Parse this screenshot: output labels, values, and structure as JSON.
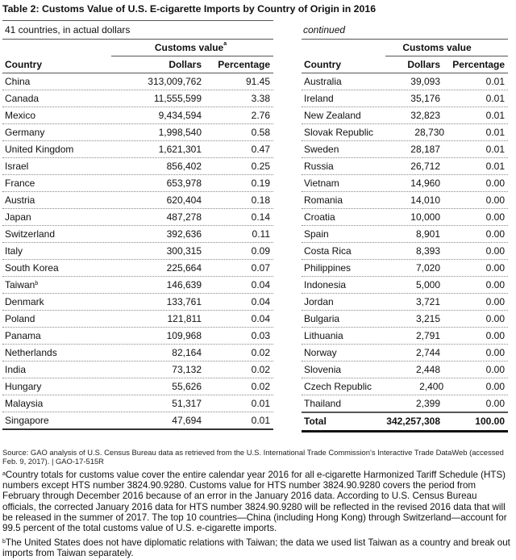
{
  "title": "Table 2: Customs Value of U.S. E-cigarette Imports by Country of Origin in 2016",
  "left_table": {
    "subtitle": "41 countries, in actual dollars",
    "group_header": "Customs value",
    "group_header_note": "a",
    "columns": [
      "Country",
      "Dollars",
      "Percentage"
    ],
    "rows": [
      {
        "country": "China",
        "note": "",
        "dollars": "313,009,762",
        "percentage": "91.45"
      },
      {
        "country": "Canada",
        "note": "",
        "dollars": "11,555,599",
        "percentage": "3.38"
      },
      {
        "country": "Mexico",
        "note": "",
        "dollars": "9,434,594",
        "percentage": "2.76"
      },
      {
        "country": "Germany",
        "note": "",
        "dollars": "1,998,540",
        "percentage": "0.58"
      },
      {
        "country": "United Kingdom",
        "note": "",
        "dollars": "1,621,301",
        "percentage": "0.47"
      },
      {
        "country": "Israel",
        "note": "",
        "dollars": "856,402",
        "percentage": "0.25"
      },
      {
        "country": "France",
        "note": "",
        "dollars": "653,978",
        "percentage": "0.19"
      },
      {
        "country": "Austria",
        "note": "",
        "dollars": "620,404",
        "percentage": "0.18"
      },
      {
        "country": "Japan",
        "note": "",
        "dollars": "487,278",
        "percentage": "0.14"
      },
      {
        "country": "Switzerland",
        "note": "",
        "dollars": "392,636",
        "percentage": "0.11"
      },
      {
        "country": "Italy",
        "note": "",
        "dollars": "300,315",
        "percentage": "0.09"
      },
      {
        "country": "South Korea",
        "note": "",
        "dollars": "225,664",
        "percentage": "0.07"
      },
      {
        "country": "Taiwan",
        "note": "b",
        "dollars": "146,639",
        "percentage": "0.04"
      },
      {
        "country": "Denmark",
        "note": "",
        "dollars": "133,761",
        "percentage": "0.04"
      },
      {
        "country": "Poland",
        "note": "",
        "dollars": "121,811",
        "percentage": "0.04"
      },
      {
        "country": "Panama",
        "note": "",
        "dollars": "109,968",
        "percentage": "0.03"
      },
      {
        "country": "Netherlands",
        "note": "",
        "dollars": "82,164",
        "percentage": "0.02"
      },
      {
        "country": "India",
        "note": "",
        "dollars": "73,132",
        "percentage": "0.02"
      },
      {
        "country": "Hungary",
        "note": "",
        "dollars": "55,626",
        "percentage": "0.02"
      },
      {
        "country": "Malaysia",
        "note": "",
        "dollars": "51,317",
        "percentage": "0.01"
      },
      {
        "country": "Singapore",
        "note": "",
        "dollars": "47,694",
        "percentage": "0.01"
      }
    ]
  },
  "right_table": {
    "continued_label": "continued",
    "group_header": "Customs value",
    "columns": [
      "Country",
      "Dollars",
      "Percentage"
    ],
    "rows": [
      {
        "country": "Australia",
        "dollars": "39,093",
        "percentage": "0.01"
      },
      {
        "country": "Ireland",
        "dollars": "35,176",
        "percentage": "0.01"
      },
      {
        "country": "New Zealand",
        "dollars": "32,823",
        "percentage": "0.01"
      },
      {
        "country": "Slovak Republic",
        "dollars": "28,730",
        "percentage": "0.01"
      },
      {
        "country": "Sweden",
        "dollars": "28,187",
        "percentage": "0.01"
      },
      {
        "country": "Russia",
        "dollars": "26,712",
        "percentage": "0.01"
      },
      {
        "country": "Vietnam",
        "dollars": "14,960",
        "percentage": "0.00"
      },
      {
        "country": "Romania",
        "dollars": "14,010",
        "percentage": "0.00"
      },
      {
        "country": "Croatia",
        "dollars": "10,000",
        "percentage": "0.00"
      },
      {
        "country": "Spain",
        "dollars": "8,901",
        "percentage": "0.00"
      },
      {
        "country": "Costa Rica",
        "dollars": "8,393",
        "percentage": "0.00"
      },
      {
        "country": "Philippines",
        "dollars": "7,020",
        "percentage": "0.00"
      },
      {
        "country": "Indonesia",
        "dollars": "5,000",
        "percentage": "0.00"
      },
      {
        "country": "Jordan",
        "dollars": "3,721",
        "percentage": "0.00"
      },
      {
        "country": "Bulgaria",
        "dollars": "3,215",
        "percentage": "0.00"
      },
      {
        "country": "Lithuania",
        "dollars": "2,791",
        "percentage": "0.00"
      },
      {
        "country": "Norway",
        "dollars": "2,744",
        "percentage": "0.00"
      },
      {
        "country": "Slovenia",
        "dollars": "2,448",
        "percentage": "0.00"
      },
      {
        "country": "Czech Republic",
        "dollars": "2,400",
        "percentage": "0.00"
      },
      {
        "country": "Thailand",
        "dollars": "2,399",
        "percentage": "0.00"
      }
    ],
    "total": {
      "label": "Total",
      "dollars": "342,257,308",
      "percentage": "100.00"
    }
  },
  "notes": {
    "source": "Source: GAO analysis of U.S. Census Bureau data as retrieved from the U.S. International Trade Commission’s Interactive Trade DataWeb (accessed Feb. 9, 2017).  |  GAO-17-515R",
    "footnote_a_marker": "a",
    "footnote_a": "Country totals for customs value cover the entire calendar year 2016 for all e-cigarette Harmonized Tariff Schedule (HTS) numbers except HTS number 3824.90.9280. Customs value for HTS number 3824.90.9280 covers the period from February through December 2016 because of an error in the January 2016 data. According to U.S. Census Bureau officials, the corrected January 2016 data for HTS number 3824.90.9280 will be reflected in the revised 2016 data that will be released in the summer of 2017. The top 10 countries—China (including Hong Kong) through Switzerland—account for 99.5 percent of the total customs value of U.S. e-cigarette imports.",
    "footnote_b_marker": "b",
    "footnote_b": "The United States does not have diplomatic relations with Taiwan; the data we used list Taiwan as a country and break out imports from Taiwan separately."
  }
}
